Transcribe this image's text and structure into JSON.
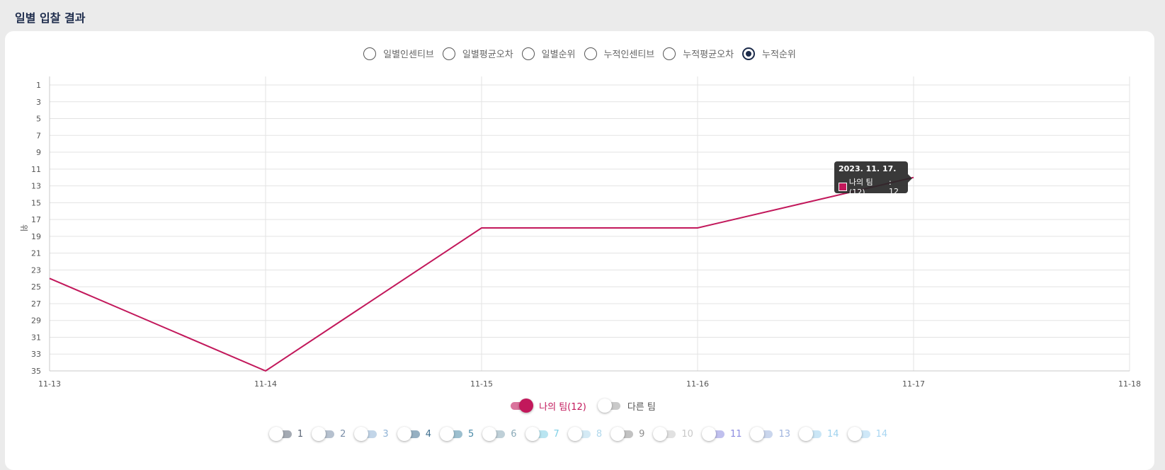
{
  "page": {
    "title": "일별 입찰 결과"
  },
  "radios": [
    {
      "label": "일별인센티브",
      "selected": false
    },
    {
      "label": "일별평균오차",
      "selected": false
    },
    {
      "label": "일별순위",
      "selected": false
    },
    {
      "label": "누적인센티브",
      "selected": false
    },
    {
      "label": "누적평균오차",
      "selected": false
    },
    {
      "label": "누적순위",
      "selected": true
    }
  ],
  "chart_data": {
    "type": "line",
    "ylabel": "위",
    "y_reversed": true,
    "ylim": [
      1,
      35
    ],
    "yticks": [
      1,
      3,
      5,
      7,
      9,
      11,
      13,
      15,
      17,
      19,
      21,
      23,
      25,
      27,
      29,
      31,
      33,
      35
    ],
    "x_ticks": [
      "11-13",
      "11-14",
      "11-15",
      "11-16",
      "11-17",
      "11-18"
    ],
    "grid": true,
    "series": [
      {
        "name": "나의 팀(12)",
        "color": "#c2185b",
        "x": [
          "11-13",
          "11-14",
          "11-15",
          "11-16",
          "11-17"
        ],
        "values": [
          24,
          35,
          18,
          18,
          12
        ]
      }
    ]
  },
  "tooltip": {
    "title": "2023. 11. 17.",
    "series_label": "나의 팀(12)",
    "value_text": ": 12",
    "color": "#c2185b"
  },
  "legend_main": [
    {
      "label": "나의 팀(12)",
      "on": true,
      "color": "#c2185b"
    },
    {
      "label": "다른 팀",
      "on": false,
      "color": "#555555"
    }
  ],
  "legend_teams": [
    {
      "label": "1",
      "color": "#5a6475"
    },
    {
      "label": "2",
      "color": "#7a8ea8"
    },
    {
      "label": "3",
      "color": "#8fb3d6"
    },
    {
      "label": "4",
      "color": "#3f6f8f"
    },
    {
      "label": "5",
      "color": "#4a8aa8"
    },
    {
      "label": "6",
      "color": "#8aaab8"
    },
    {
      "label": "7",
      "color": "#7fd0e6"
    },
    {
      "label": "8",
      "color": "#b0d8ec"
    },
    {
      "label": "9",
      "color": "#8f8f8f"
    },
    {
      "label": "10",
      "color": "#c8c8c8"
    },
    {
      "label": "11",
      "color": "#8c8ce0"
    },
    {
      "label": "13",
      "color": "#9fb4de"
    },
    {
      "label": "14",
      "color": "#9fd2ee"
    },
    {
      "label": "14",
      "color": "#a8d6f2"
    }
  ]
}
